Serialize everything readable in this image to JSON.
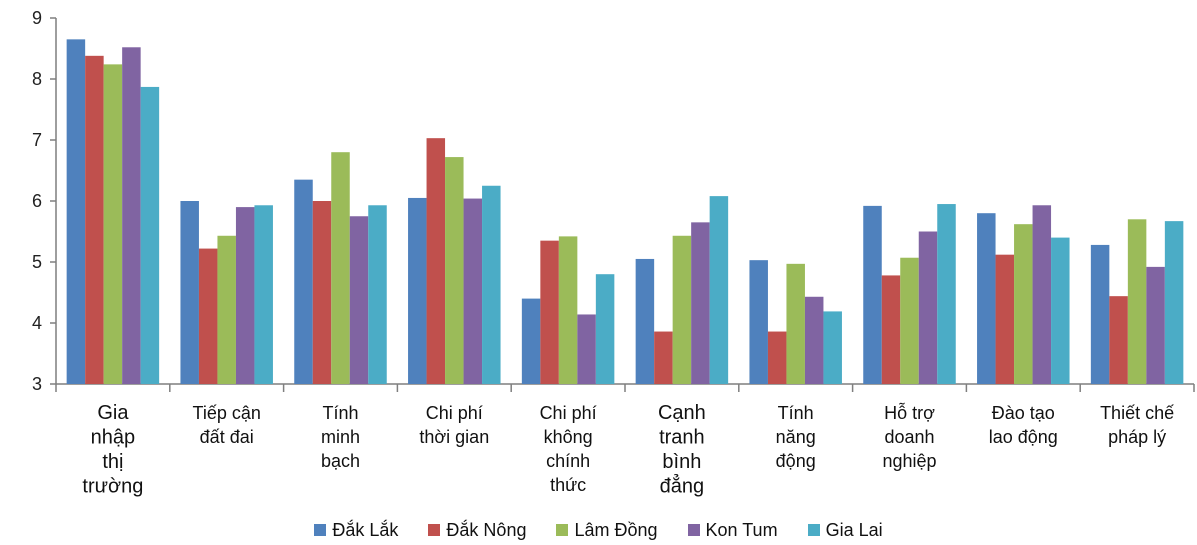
{
  "chart_data": {
    "type": "bar",
    "title": "",
    "xlabel": "",
    "ylabel": "",
    "ylim": [
      3,
      9
    ],
    "yticks": [
      "3",
      "4",
      "5",
      "6",
      "7",
      "8",
      "9"
    ],
    "grid": false,
    "legend_position": "bottom",
    "categories": [
      [
        "Gia",
        "nhập",
        "thị",
        "trường"
      ],
      [
        "Tiếp cận",
        "đất đai"
      ],
      [
        "Tính",
        "minh",
        "bạch"
      ],
      [
        "Chi phí",
        "thời gian"
      ],
      [
        "Chi phí",
        "không",
        "chính",
        "thức"
      ],
      [
        "Cạnh",
        "tranh",
        "bình",
        "đẳng"
      ],
      [
        "Tính",
        "năng",
        "động"
      ],
      [
        "Hỗ trợ",
        "doanh",
        "nghiệp"
      ],
      [
        "Đào tạo",
        "lao động"
      ],
      [
        "Thiết chế",
        "pháp lý"
      ]
    ],
    "emphasized_categories": [
      0,
      5
    ],
    "series": [
      {
        "name": "Đắk Lắk",
        "color": "#4F81BD",
        "values": [
          8.65,
          6.0,
          6.35,
          6.05,
          4.4,
          5.05,
          5.03,
          5.92,
          5.8,
          5.28
        ]
      },
      {
        "name": "Đắk Nông",
        "color": "#C0504D",
        "values": [
          8.38,
          5.22,
          6.0,
          7.03,
          5.35,
          3.86,
          3.86,
          4.78,
          5.12,
          4.44
        ]
      },
      {
        "name": "Lâm Đồng",
        "color": "#9BBB59",
        "values": [
          8.24,
          5.43,
          6.8,
          6.72,
          5.42,
          5.43,
          4.97,
          5.07,
          5.62,
          5.7
        ]
      },
      {
        "name": "Kon Tum",
        "color": "#8064A2",
        "values": [
          8.52,
          5.9,
          5.75,
          6.04,
          4.14,
          5.65,
          4.43,
          5.5,
          5.93,
          4.92
        ]
      },
      {
        "name": "Gia Lai",
        "color": "#4BACC6",
        "values": [
          7.87,
          5.93,
          5.93,
          6.25,
          4.8,
          6.08,
          4.19,
          5.95,
          5.4,
          5.67
        ]
      }
    ]
  }
}
